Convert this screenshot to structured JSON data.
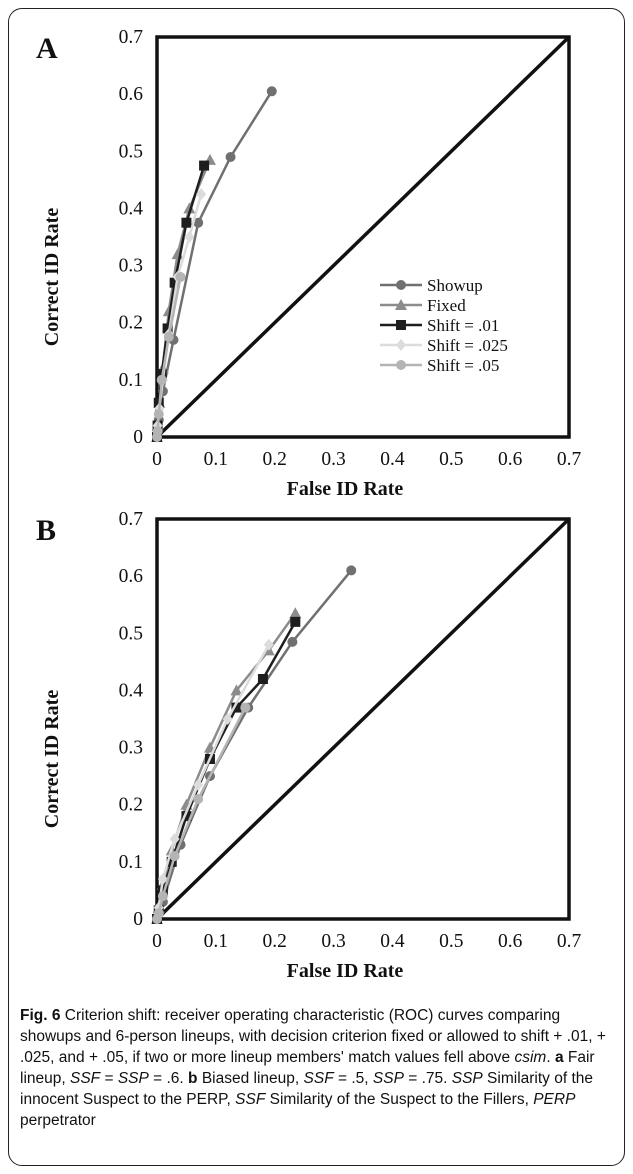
{
  "chart_data": [
    {
      "type": "line",
      "panel_label": "A",
      "xlabel": "False ID Rate",
      "ylabel": "Correct ID Rate",
      "xlim": [
        0,
        0.7
      ],
      "ylim": [
        0,
        0.7
      ],
      "x_ticks": [
        "0",
        "0.1",
        "0.2",
        "0.3",
        "0.4",
        "0.5",
        "0.6",
        "0.7"
      ],
      "y_ticks": [
        "0",
        "0.1",
        "0.2",
        "0.3",
        "0.4",
        "0.5",
        "0.6",
        "0.7"
      ],
      "legend_position": "bottom-right",
      "chance_line": {
        "x": [
          0,
          0.7
        ],
        "y": [
          0,
          0.7
        ]
      },
      "series": [
        {
          "name": "Showup",
          "color": "#707070",
          "marker": "circle",
          "x": [
            0,
            0.001,
            0.003,
            0.01,
            0.028,
            0.07,
            0.125,
            0.195
          ],
          "y": [
            0,
            0.01,
            0.03,
            0.08,
            0.17,
            0.375,
            0.49,
            0.605
          ]
        },
        {
          "name": "Fixed",
          "color": "#8c8c8c",
          "marker": "triangle",
          "x": [
            0,
            0.001,
            0.004,
            0.01,
            0.02,
            0.035,
            0.055,
            0.09
          ],
          "y": [
            0,
            0.02,
            0.06,
            0.12,
            0.22,
            0.32,
            0.4,
            0.485
          ]
        },
        {
          "name": "Shift = .01",
          "color": "#1e1e1e",
          "marker": "square",
          "x": [
            0,
            0.001,
            0.003,
            0.008,
            0.018,
            0.03,
            0.05,
            0.08
          ],
          "y": [
            0,
            0.02,
            0.06,
            0.11,
            0.19,
            0.27,
            0.375,
            0.475
          ]
        },
        {
          "name": "Shift = .025",
          "color": "#dcdcdc",
          "marker": "diamond",
          "x": [
            0,
            0.001,
            0.004,
            0.01,
            0.02,
            0.035,
            0.055,
            0.075
          ],
          "y": [
            0,
            0.02,
            0.05,
            0.1,
            0.18,
            0.28,
            0.35,
            0.425
          ]
        },
        {
          "name": "Shift = .05",
          "color": "#b4b4b4",
          "marker": "circle",
          "x": [
            0,
            0.001,
            0.003,
            0.008,
            0.02,
            0.04
          ],
          "y": [
            0,
            0.01,
            0.04,
            0.1,
            0.175,
            0.28
          ]
        }
      ]
    },
    {
      "type": "line",
      "panel_label": "B",
      "xlabel": "False ID Rate",
      "ylabel": "Correct ID Rate",
      "xlim": [
        0,
        0.7
      ],
      "ylim": [
        0,
        0.7
      ],
      "x_ticks": [
        "0",
        "0.1",
        "0.2",
        "0.3",
        "0.4",
        "0.5",
        "0.6",
        "0.7"
      ],
      "y_ticks": [
        "0",
        "0.1",
        "0.2",
        "0.3",
        "0.4",
        "0.5",
        "0.6",
        "0.7"
      ],
      "chance_line": {
        "x": [
          0,
          0.7
        ],
        "y": [
          0,
          0.7
        ]
      },
      "series": [
        {
          "name": "Showup",
          "color": "#707070",
          "marker": "circle",
          "x": [
            0,
            0.003,
            0.01,
            0.04,
            0.09,
            0.155,
            0.23,
            0.33
          ],
          "y": [
            0,
            0.01,
            0.03,
            0.13,
            0.25,
            0.37,
            0.485,
            0.61
          ]
        },
        {
          "name": "Fixed",
          "color": "#8c8c8c",
          "marker": "triangle",
          "x": [
            0,
            0.003,
            0.01,
            0.025,
            0.05,
            0.09,
            0.135,
            0.19,
            0.235
          ],
          "y": [
            0,
            0.02,
            0.06,
            0.12,
            0.2,
            0.3,
            0.4,
            0.47,
            0.535
          ]
        },
        {
          "name": "Shift = .01",
          "color": "#1e1e1e",
          "marker": "square",
          "x": [
            0,
            0.003,
            0.01,
            0.025,
            0.05,
            0.09,
            0.135,
            0.18,
            0.235
          ],
          "y": [
            0,
            0.015,
            0.05,
            0.1,
            0.18,
            0.28,
            0.37,
            0.42,
            0.52
          ]
        },
        {
          "name": "Shift = .025",
          "color": "#dcdcdc",
          "marker": "diamond",
          "x": [
            0,
            0.003,
            0.01,
            0.03,
            0.07,
            0.12,
            0.19
          ],
          "y": [
            0,
            0.02,
            0.07,
            0.14,
            0.235,
            0.35,
            0.48
          ]
        },
        {
          "name": "Shift = .05",
          "color": "#b4b4b4",
          "marker": "circle",
          "x": [
            0,
            0.003,
            0.01,
            0.03,
            0.07,
            0.15
          ],
          "y": [
            0,
            0.01,
            0.04,
            0.11,
            0.21,
            0.37
          ]
        }
      ]
    }
  ],
  "caption": {
    "fig_label": "Fig. 6",
    "parts": [
      {
        "t": " Criterion shift: receiver operating characteristic (ROC) curves comparing showups and 6-person lineups, with decision criterion fixed or allowed to shift + .01, + .025, and + .05, if two or more lineup members' match values fell above ",
        "s": "n"
      },
      {
        "t": "csim",
        "s": "i"
      },
      {
        "t": ". ",
        "s": "n"
      },
      {
        "t": "a",
        "s": "b"
      },
      {
        "t": " Fair lineup, ",
        "s": "n"
      },
      {
        "t": "SSF",
        "s": "i"
      },
      {
        "t": " = ",
        "s": "n"
      },
      {
        "t": "SSP",
        "s": "i"
      },
      {
        "t": " = .6. ",
        "s": "n"
      },
      {
        "t": "b",
        "s": "b"
      },
      {
        "t": " Biased lineup, ",
        "s": "n"
      },
      {
        "t": "SSF",
        "s": "i"
      },
      {
        "t": " = .5, ",
        "s": "n"
      },
      {
        "t": "SSP",
        "s": "i"
      },
      {
        "t": " = .75. ",
        "s": "n"
      },
      {
        "t": "SSP",
        "s": "i"
      },
      {
        "t": " Similarity of the innocent Suspect to the PERP, ",
        "s": "n"
      },
      {
        "t": "SSF",
        "s": "i"
      },
      {
        "t": " Similarity of the Suspect to the Fillers, ",
        "s": "n"
      },
      {
        "t": "PERP",
        "s": "i"
      },
      {
        "t": " perpetrator",
        "s": "n"
      }
    ]
  }
}
